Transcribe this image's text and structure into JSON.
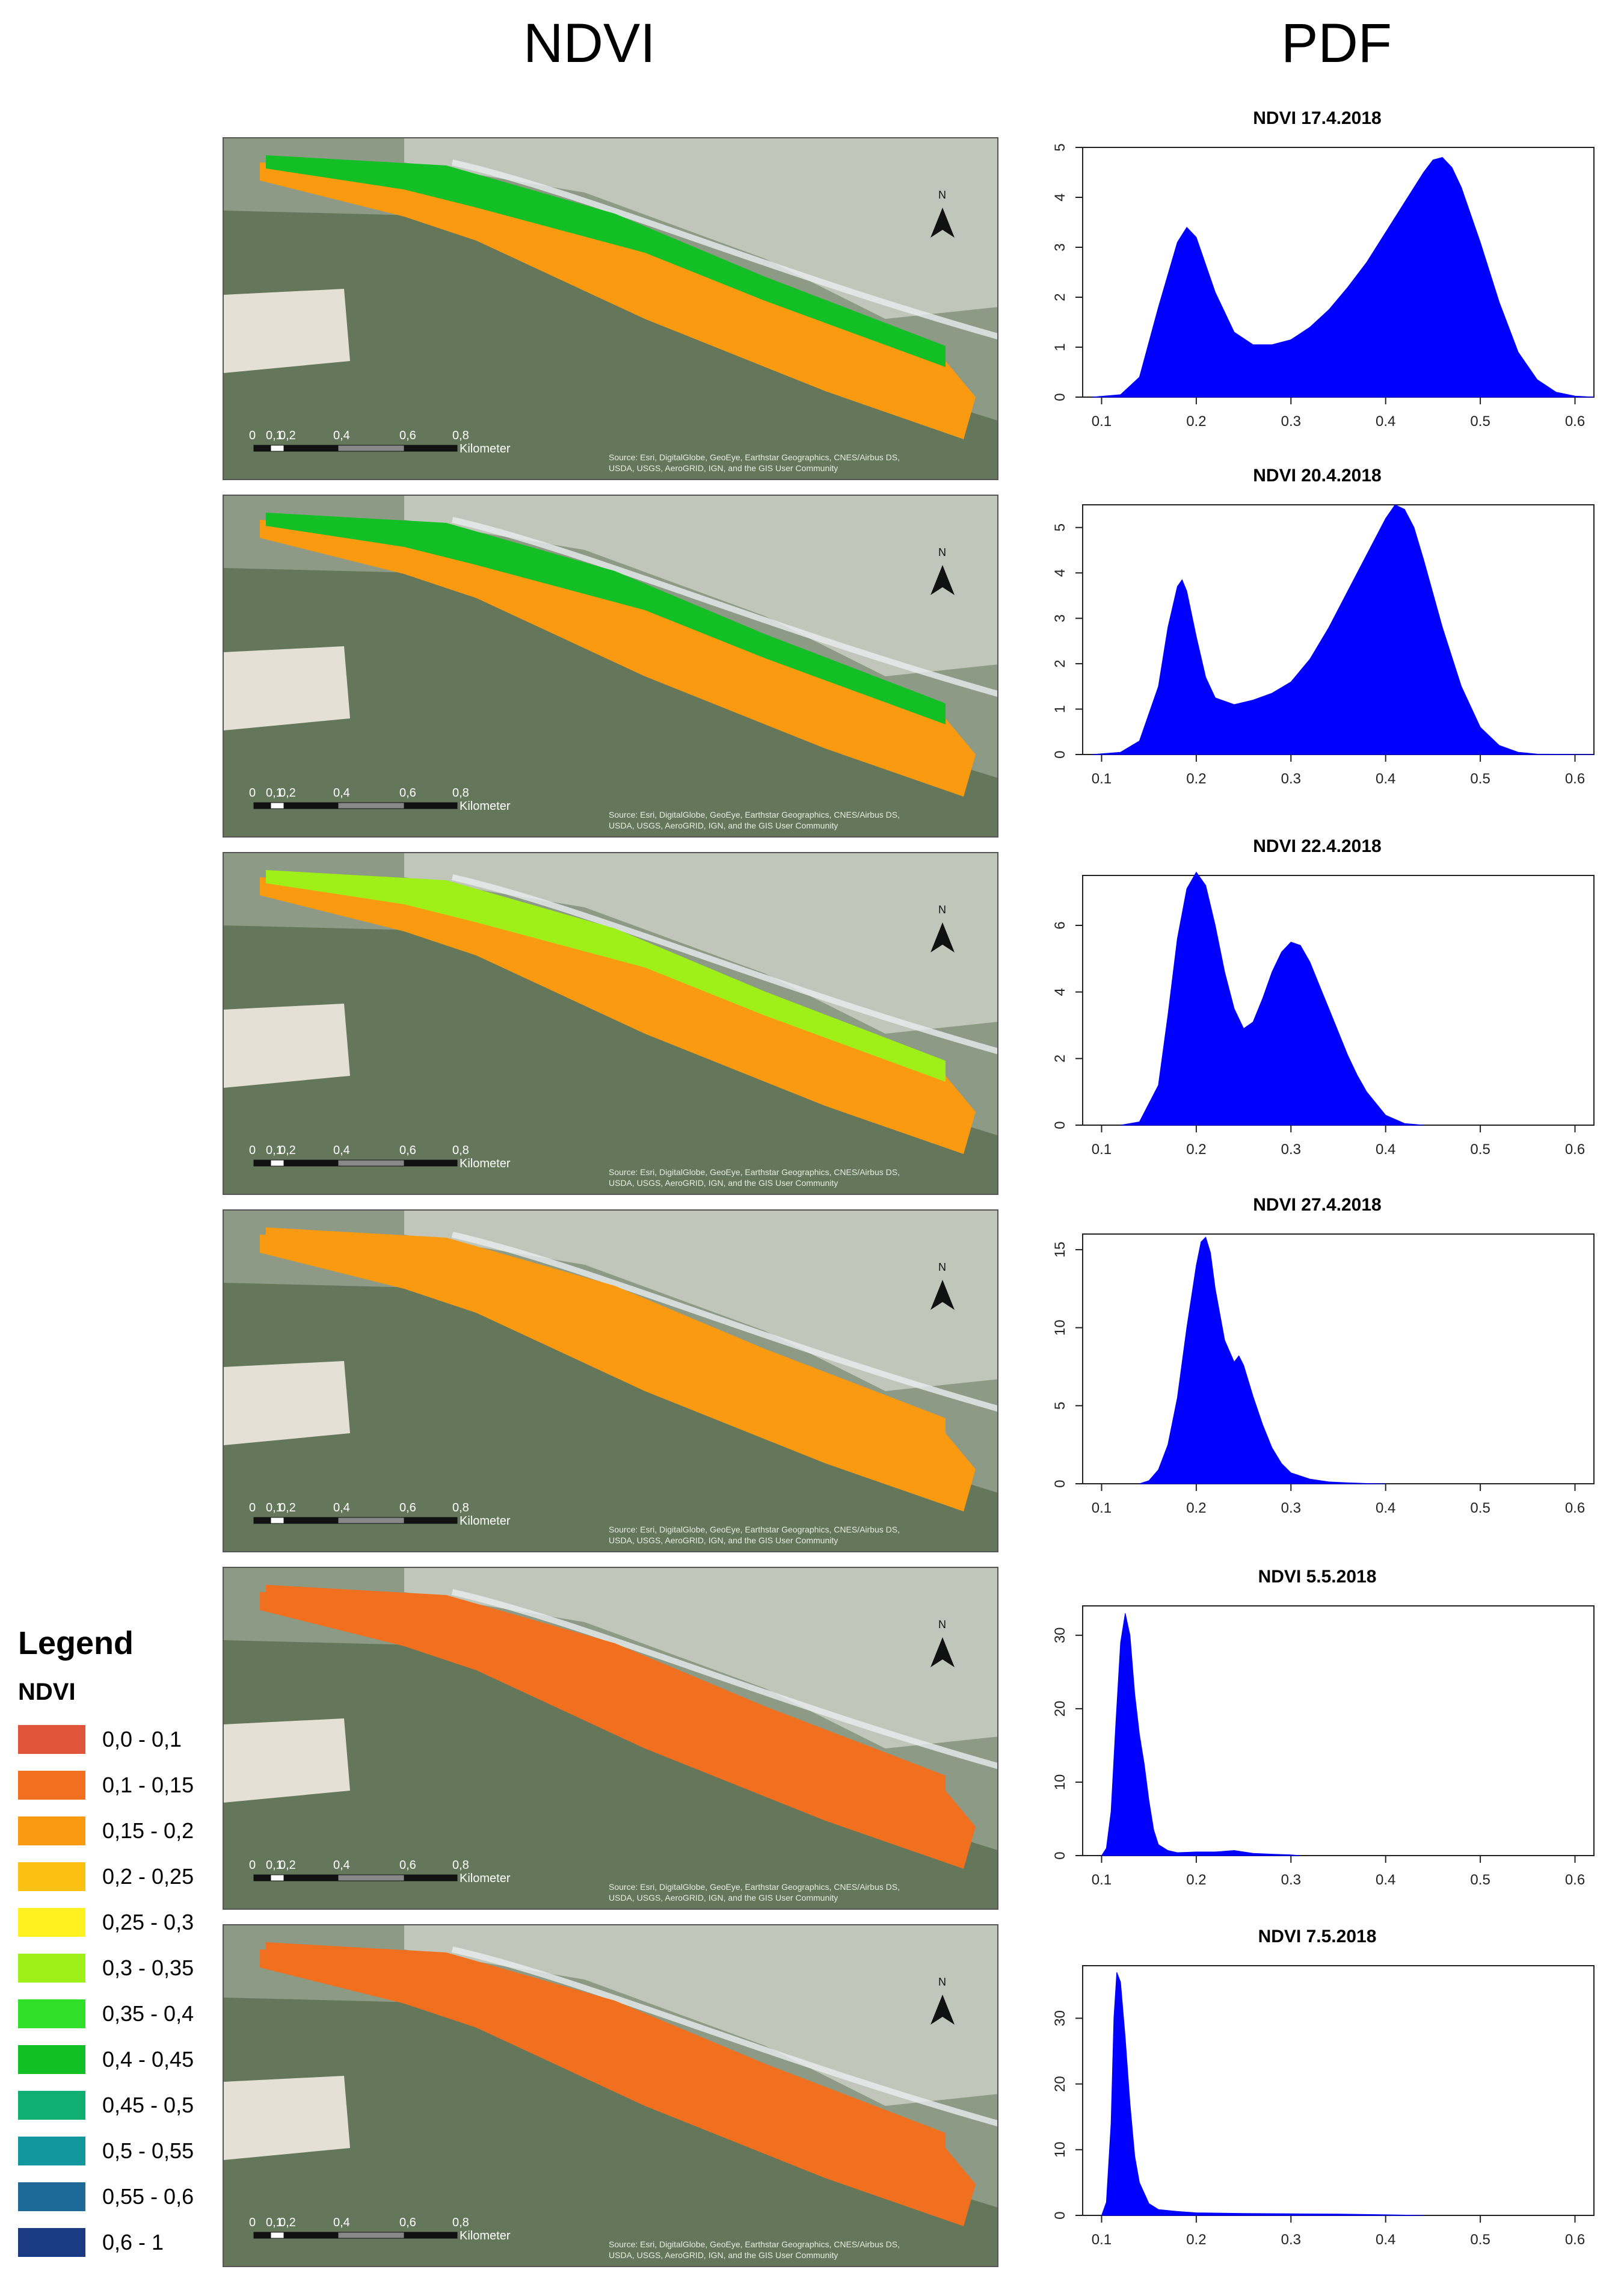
{
  "headers": {
    "left": "NDVI",
    "right": "PDF"
  },
  "legend": {
    "title": "Legend",
    "subtitle": "NDVI",
    "classes": [
      {
        "label": "0,0 - 0,1",
        "color": "#e0543a"
      },
      {
        "label": "0,1 - 0,15",
        "color": "#f07020"
      },
      {
        "label": "0,15 - 0,2",
        "color": "#fa9a10"
      },
      {
        "label": "0,2 - 0,25",
        "color": "#fcc010"
      },
      {
        "label": "0,25 - 0,3",
        "color": "#fff020"
      },
      {
        "label": "0,3 - 0,35",
        "color": "#9ef018"
      },
      {
        "label": "0,35 - 0,4",
        "color": "#30e028"
      },
      {
        "label": "0,4 - 0,45",
        "color": "#12c026"
      },
      {
        "label": "0,45 - 0,5",
        "color": "#10ae70"
      },
      {
        "label": "0,5 - 0,55",
        "color": "#13979e"
      },
      {
        "label": "0,55 - 0,6",
        "color": "#1d6a98"
      },
      {
        "label": "0,6 - 1",
        "color": "#1a3a84"
      }
    ]
  },
  "map": {
    "north_label": "N",
    "scale_ticks": [
      "0",
      "0,1",
      "0,2",
      "0,4",
      "0,6",
      "0,8"
    ],
    "scale_unit": "Kilometer",
    "credit_line1": "Source: Esri, DigitalGlobe, GeoEye, Earthstar Geographics, CNES/Airbus DS,",
    "credit_line2": "USDA, USGS, AeroGRID, IGN, and the GIS User Community",
    "dominant_classes": [
      {
        "west": "0,15 - 0,2",
        "east": "0,4 - 0,45"
      },
      {
        "west": "0,15 - 0,2",
        "east": "0,4 - 0,45"
      },
      {
        "west": "0,15 - 0,2",
        "east": "0,3 - 0,35"
      },
      {
        "west": "0,15 - 0,2",
        "east": "0,15 - 0,2"
      },
      {
        "west": "0,1 - 0,15",
        "east": "0,1 - 0,15"
      },
      {
        "west": "0,1 - 0,15",
        "east": "0,1 - 0,15"
      }
    ]
  },
  "chart_data": [
    {
      "type": "area",
      "title": "NDVI 17.4.2018",
      "fill": "#0000ff",
      "xlim": [
        0.08,
        0.62
      ],
      "ylim": [
        0,
        5
      ],
      "xticks": [
        "0.1",
        "0.2",
        "0.3",
        "0.4",
        "0.5",
        "0.6"
      ],
      "yticks": [
        "0",
        "1",
        "2",
        "3",
        "4",
        "5"
      ],
      "x": [
        0.09,
        0.12,
        0.14,
        0.16,
        0.18,
        0.19,
        0.2,
        0.22,
        0.24,
        0.26,
        0.28,
        0.3,
        0.32,
        0.34,
        0.36,
        0.38,
        0.4,
        0.42,
        0.44,
        0.45,
        0.46,
        0.47,
        0.48,
        0.5,
        0.52,
        0.54,
        0.56,
        0.58,
        0.6,
        0.62
      ],
      "y": [
        0,
        0.05,
        0.4,
        1.8,
        3.1,
        3.4,
        3.2,
        2.1,
        1.3,
        1.05,
        1.05,
        1.15,
        1.4,
        1.75,
        2.2,
        2.7,
        3.3,
        3.9,
        4.5,
        4.75,
        4.8,
        4.6,
        4.2,
        3.1,
        1.9,
        0.9,
        0.35,
        0.1,
        0.02,
        0
      ]
    },
    {
      "type": "area",
      "title": "NDVI 20.4.2018",
      "fill": "#0000ff",
      "xlim": [
        0.08,
        0.62
      ],
      "ylim": [
        0,
        5.5
      ],
      "xticks": [
        "0.1",
        "0.2",
        "0.3",
        "0.4",
        "0.5",
        "0.6"
      ],
      "yticks": [
        "0",
        "1",
        "2",
        "3",
        "4",
        "5"
      ],
      "x": [
        0.09,
        0.12,
        0.14,
        0.16,
        0.17,
        0.18,
        0.185,
        0.19,
        0.2,
        0.21,
        0.22,
        0.24,
        0.26,
        0.28,
        0.3,
        0.32,
        0.34,
        0.36,
        0.38,
        0.4,
        0.41,
        0.42,
        0.43,
        0.44,
        0.46,
        0.48,
        0.5,
        0.52,
        0.54,
        0.56,
        0.62
      ],
      "y": [
        0,
        0.05,
        0.3,
        1.5,
        2.8,
        3.7,
        3.85,
        3.6,
        2.6,
        1.7,
        1.25,
        1.1,
        1.2,
        1.35,
        1.6,
        2.1,
        2.8,
        3.6,
        4.4,
        5.2,
        5.5,
        5.4,
        5.0,
        4.3,
        2.8,
        1.5,
        0.6,
        0.2,
        0.05,
        0.01,
        0
      ]
    },
    {
      "type": "area",
      "title": "NDVI 22.4.2018",
      "fill": "#0000ff",
      "xlim": [
        0.08,
        0.62
      ],
      "ylim": [
        0,
        7.5
      ],
      "xticks": [
        "0.1",
        "0.2",
        "0.3",
        "0.4",
        "0.5",
        "0.6"
      ],
      "yticks": [
        "0",
        "2",
        "4",
        "6"
      ],
      "x": [
        0.12,
        0.14,
        0.16,
        0.17,
        0.18,
        0.19,
        0.2,
        0.21,
        0.22,
        0.23,
        0.24,
        0.25,
        0.26,
        0.27,
        0.28,
        0.29,
        0.3,
        0.31,
        0.32,
        0.33,
        0.34,
        0.35,
        0.36,
        0.37,
        0.38,
        0.4,
        0.42,
        0.44
      ],
      "y": [
        0,
        0.1,
        1.2,
        3.3,
        5.6,
        7.1,
        7.6,
        7.2,
        6.0,
        4.6,
        3.5,
        2.9,
        3.1,
        3.8,
        4.6,
        5.2,
        5.5,
        5.4,
        4.9,
        4.2,
        3.5,
        2.8,
        2.1,
        1.5,
        1.0,
        0.3,
        0.05,
        0
      ]
    },
    {
      "type": "area",
      "title": "NDVI 27.4.2018",
      "fill": "#0000ff",
      "xlim": [
        0.08,
        0.62
      ],
      "ylim": [
        0,
        16
      ],
      "xticks": [
        "0.1",
        "0.2",
        "0.3",
        "0.4",
        "0.5",
        "0.6"
      ],
      "yticks": [
        "0",
        "5",
        "10",
        "15"
      ],
      "x": [
        0.14,
        0.15,
        0.16,
        0.17,
        0.18,
        0.19,
        0.2,
        0.205,
        0.21,
        0.215,
        0.22,
        0.23,
        0.24,
        0.245,
        0.25,
        0.26,
        0.27,
        0.28,
        0.29,
        0.3,
        0.32,
        0.34,
        0.36,
        0.38,
        0.4
      ],
      "y": [
        0,
        0.2,
        0.9,
        2.5,
        5.5,
        10.0,
        14.0,
        15.5,
        15.8,
        14.8,
        12.5,
        9.2,
        7.8,
        8.2,
        7.6,
        5.6,
        3.8,
        2.3,
        1.3,
        0.7,
        0.3,
        0.12,
        0.06,
        0.02,
        0
      ]
    },
    {
      "type": "area",
      "title": "NDVI 5.5.2018",
      "fill": "#0000ff",
      "xlim": [
        0.08,
        0.62
      ],
      "ylim": [
        0,
        34
      ],
      "xticks": [
        "0.1",
        "0.2",
        "0.3",
        "0.4",
        "0.5",
        "0.6"
      ],
      "yticks": [
        "0",
        "10",
        "20",
        "30"
      ],
      "x": [
        0.1,
        0.105,
        0.11,
        0.115,
        0.12,
        0.125,
        0.13,
        0.135,
        0.14,
        0.145,
        0.15,
        0.155,
        0.16,
        0.17,
        0.18,
        0.2,
        0.22,
        0.24,
        0.26,
        0.28,
        0.3,
        0.31
      ],
      "y": [
        0,
        1.0,
        6.0,
        18.0,
        29.0,
        33.0,
        30.0,
        22.0,
        16.5,
        12.5,
        7.5,
        3.5,
        1.5,
        0.7,
        0.4,
        0.5,
        0.5,
        0.7,
        0.3,
        0.2,
        0.1,
        0
      ]
    },
    {
      "type": "area",
      "title": "NDVI 7.5.2018",
      "fill": "#0000ff",
      "xlim": [
        0.08,
        0.62
      ],
      "ylim": [
        0,
        38
      ],
      "xticks": [
        "0.1",
        "0.2",
        "0.3",
        "0.4",
        "0.5",
        "0.6"
      ],
      "yticks": [
        "0",
        "10",
        "20",
        "30"
      ],
      "x": [
        0.1,
        0.105,
        0.11,
        0.113,
        0.116,
        0.12,
        0.125,
        0.13,
        0.135,
        0.14,
        0.15,
        0.16,
        0.18,
        0.2,
        0.25,
        0.3,
        0.35,
        0.4,
        0.44
      ],
      "y": [
        0,
        2.0,
        14.0,
        30.0,
        37.0,
        35.5,
        27.0,
        17.0,
        9.0,
        5.0,
        1.8,
        0.9,
        0.6,
        0.4,
        0.3,
        0.25,
        0.2,
        0.1,
        0
      ]
    }
  ]
}
